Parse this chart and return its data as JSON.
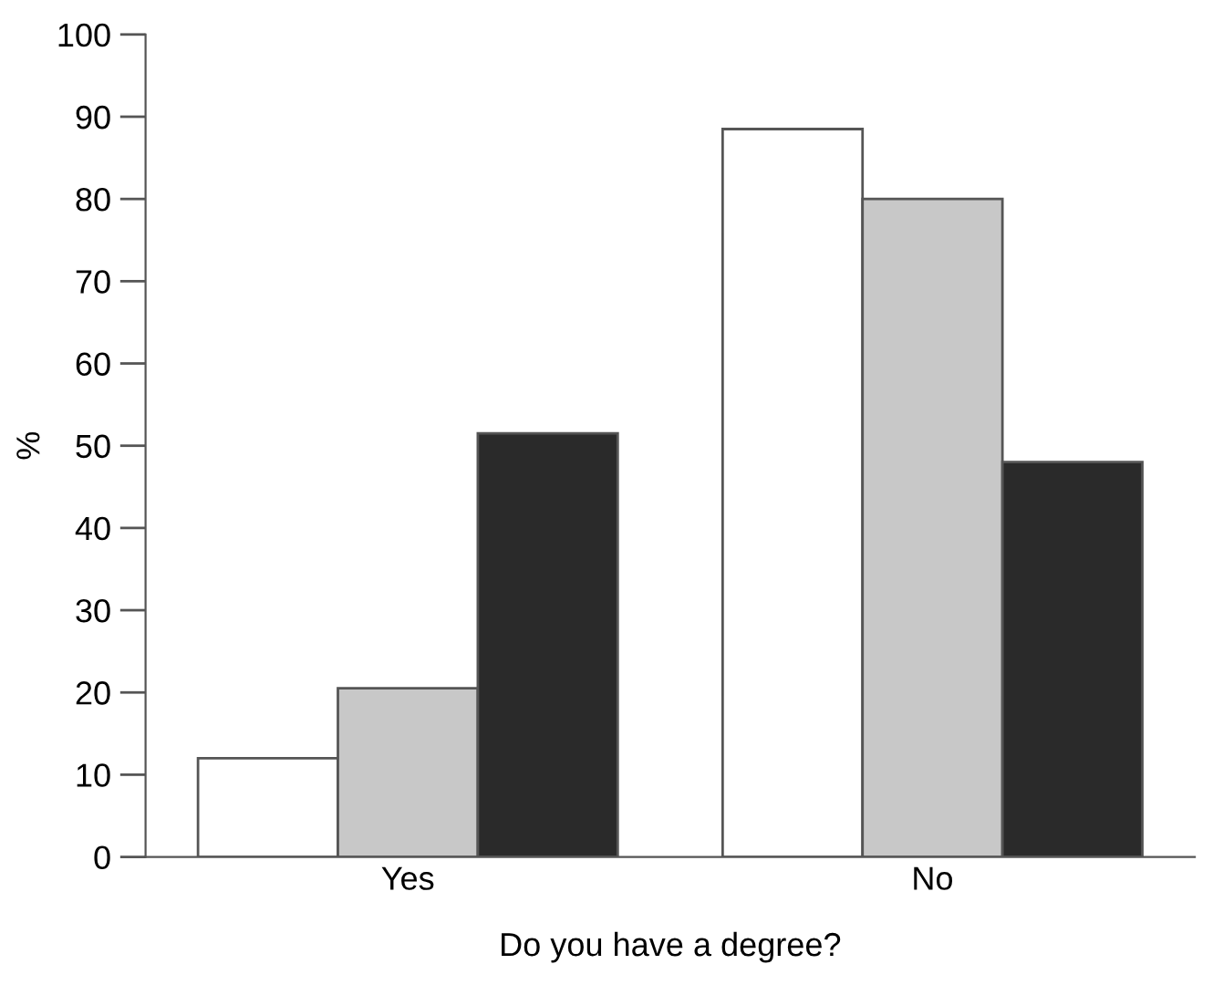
{
  "chart_data": {
    "type": "bar",
    "xlabel": "Do you have a degree?",
    "ylabel": "%",
    "categories": [
      "Yes",
      "No"
    ],
    "series": [
      {
        "color": "#ffffff",
        "values": [
          12,
          88.5
        ]
      },
      {
        "color": "#c8c8c8",
        "values": [
          20.5,
          80
        ]
      },
      {
        "color": "#2a2a2a",
        "values": [
          51.5,
          48
        ]
      }
    ],
    "ylim": [
      0,
      100
    ],
    "yticks": [
      0,
      10,
      20,
      30,
      40,
      50,
      60,
      70,
      80,
      90,
      100
    ],
    "grid": false
  }
}
